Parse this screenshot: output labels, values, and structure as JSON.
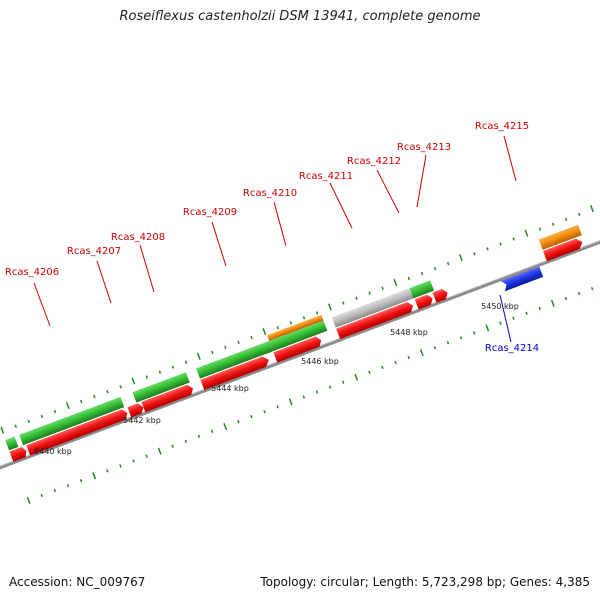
{
  "title": "Roseiflexus castenholzii DSM 13941, complete genome",
  "footer": {
    "accession": "Accession: NC_009767",
    "summary": "Topology: circular; Length: 5,723,298 bp; Genes: 4,385"
  },
  "colors": {
    "backbone": "#8a8a8a",
    "cds": "#ee1111",
    "gene": "#33bb33",
    "orange": "#f08a10",
    "gray": "#bbbbbb",
    "blue": "#1a33dd",
    "ticks": "#228822",
    "forward_label": "#cc0000",
    "reverse_label": "#0000cc"
  },
  "scale": [
    {
      "label": "5440 kbp"
    },
    {
      "label": "5442 kbp"
    },
    {
      "label": "5444 kbp"
    },
    {
      "label": "5446 kbp"
    },
    {
      "label": "5448 kbp"
    },
    {
      "label": "5450 kbp"
    }
  ],
  "genes": [
    {
      "label": "Rcas_4206",
      "strand": "forward",
      "type": "cds"
    },
    {
      "label": "Rcas_4207",
      "strand": "forward",
      "type": "cds"
    },
    {
      "label": "Rcas_4208",
      "strand": "forward",
      "type": "cds"
    },
    {
      "label": "Rcas_4209",
      "strand": "forward",
      "type": "cds"
    },
    {
      "label": "Rcas_4210",
      "strand": "forward",
      "type": "cds"
    },
    {
      "label": "Rcas_4211",
      "strand": "forward",
      "type": "cds"
    },
    {
      "label": "Rcas_4212",
      "strand": "forward",
      "type": "cds"
    },
    {
      "label": "Rcas_4213",
      "strand": "forward",
      "type": "cds"
    },
    {
      "label": "Rcas_4215",
      "strand": "forward",
      "type": "cds"
    },
    {
      "label": "Rcas_4214",
      "strand": "reverse",
      "type": "cds"
    }
  ]
}
